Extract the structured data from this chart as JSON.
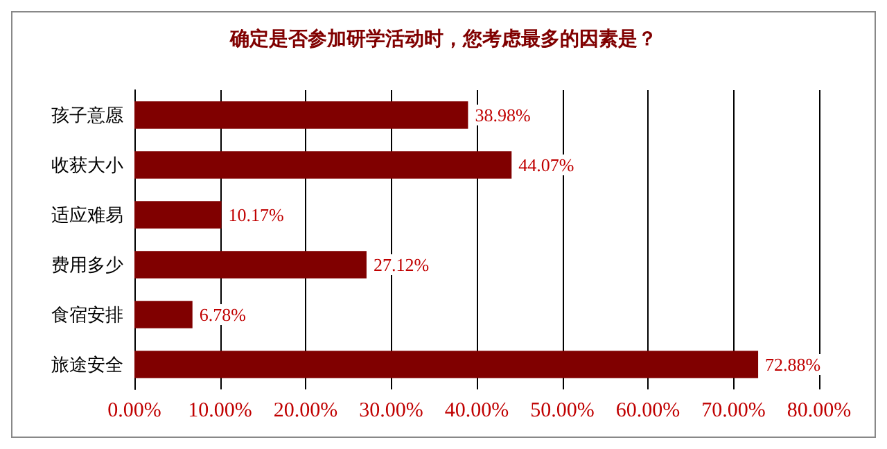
{
  "chart_data": {
    "type": "bar",
    "orientation": "horizontal",
    "title": "确定是否参加研学活动时，您考虑最多的因素是？",
    "categories": [
      "孩子意愿",
      "收获大小",
      "适应难易",
      "费用多少",
      "食宿安排",
      "旅途安全"
    ],
    "values": [
      38.98,
      44.07,
      10.17,
      27.12,
      6.78,
      72.88
    ],
    "value_labels": [
      "38.98%",
      "44.07%",
      "10.17%",
      "27.12%",
      "6.78%",
      "72.88%"
    ],
    "color": "#800000",
    "xlim": [
      0,
      80
    ],
    "xticks": [
      {
        "value": 0,
        "label": "0.00%"
      },
      {
        "value": 10,
        "label": "10.00%"
      },
      {
        "value": 20,
        "label": "20.00%"
      },
      {
        "value": 30,
        "label": "30.00%"
      },
      {
        "value": 40,
        "label": "40.00%"
      },
      {
        "value": 50,
        "label": "50.00%"
      },
      {
        "value": 60,
        "label": "60.00%"
      },
      {
        "value": 70,
        "label": "70.00%"
      },
      {
        "value": 80,
        "label": "80.00%"
      }
    ],
    "grid": "x"
  }
}
